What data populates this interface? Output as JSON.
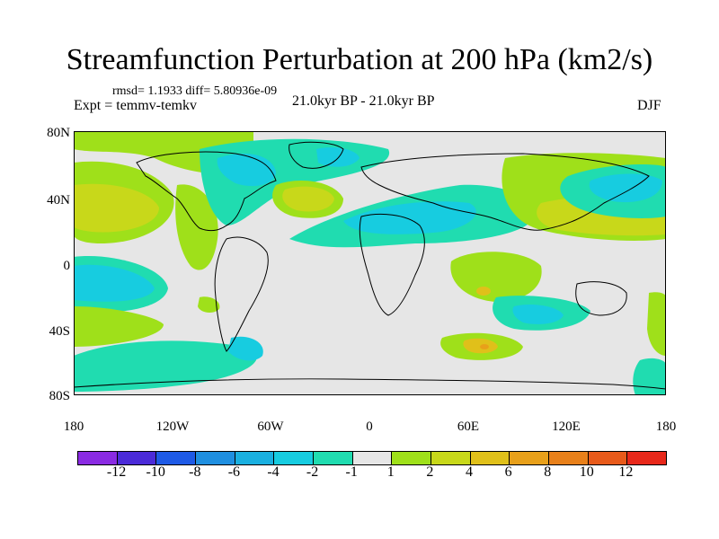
{
  "title": "Streamfunction Perturbation at 200 hPa (km2/s)",
  "stats_line": "rmsd= 1.1933 diff= 5.80936e-09",
  "experiment": "Expt = temmv-temkv",
  "period": "21.0kyr BP - 21.0kyr BP",
  "season": "DJF",
  "lat_labels": [
    "80N",
    "40N",
    "0",
    "40S",
    "80S"
  ],
  "lon_labels": [
    "180",
    "120W",
    "60W",
    "0",
    "60E",
    "120E",
    "180"
  ],
  "colorbar": {
    "colors": [
      "#8a2be2",
      "#4b2bd8",
      "#1e5ae6",
      "#1f8fe0",
      "#1ab0e0",
      "#17cce0",
      "#20dcb0",
      "#e6e6e6",
      "#9fe01a",
      "#c8d81a",
      "#e0c01a",
      "#e8a01a",
      "#e8801a",
      "#e85a1a",
      "#e8281a"
    ],
    "labels": [
      "-12",
      "-10",
      "-8",
      "-6",
      "-4",
      "-2",
      "-1",
      "1",
      "2",
      "4",
      "6",
      "8",
      "10",
      "12"
    ]
  },
  "map_colors": {
    "background": "#e6e6e6",
    "neg1": "#20dcb0",
    "neg2": "#17cce0",
    "neg4": "#1ab0e0",
    "pos1": "#9fe01a",
    "pos2": "#c8d81a",
    "pos4": "#e0c01a",
    "pos6": "#e8a01a"
  }
}
